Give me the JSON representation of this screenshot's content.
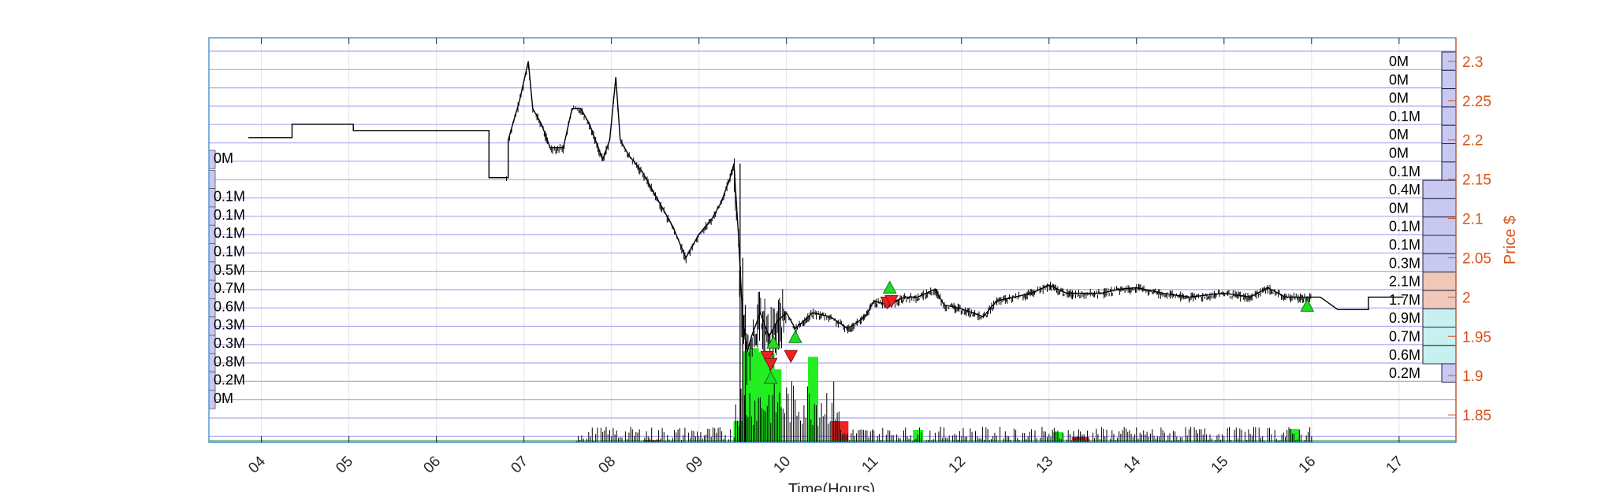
{
  "chart_data": {
    "type": "line",
    "xlabel": "Time(Hours)",
    "ylabel": "Price $",
    "xlim": [
      3.4,
      17.65
    ],
    "ylim": [
      1.815,
      2.33
    ],
    "x_ticks": [
      {
        "value": 4,
        "label": "04"
      },
      {
        "value": 5,
        "label": "05"
      },
      {
        "value": 6,
        "label": "06"
      },
      {
        "value": 7,
        "label": "07"
      },
      {
        "value": 8,
        "label": "08"
      },
      {
        "value": 9,
        "label": "09"
      },
      {
        "value": 10,
        "label": "10"
      },
      {
        "value": 11,
        "label": "11"
      },
      {
        "value": 12,
        "label": "12"
      },
      {
        "value": 13,
        "label": "13"
      },
      {
        "value": 14,
        "label": "14"
      },
      {
        "value": 15,
        "label": "15"
      },
      {
        "value": 16,
        "label": "16"
      },
      {
        "value": 17,
        "label": "17"
      }
    ],
    "y_ticks": [
      {
        "value": 2.3,
        "label": "2.3"
      },
      {
        "value": 2.25,
        "label": "2.25"
      },
      {
        "value": 2.2,
        "label": "2.2"
      },
      {
        "value": 2.15,
        "label": "2.15"
      },
      {
        "value": 2.1,
        "label": "2.1"
      },
      {
        "value": 2.05,
        "label": "2.05"
      },
      {
        "value": 2.0,
        "label": "2"
      },
      {
        "value": 1.95,
        "label": "1.95"
      },
      {
        "value": 1.9,
        "label": "1.9"
      },
      {
        "value": 1.85,
        "label": "1.85"
      }
    ],
    "price_series": {
      "name": "Price",
      "color": "#000000",
      "points": [
        [
          3.85,
          2.203
        ],
        [
          4.35,
          2.203
        ],
        [
          4.35,
          2.22
        ],
        [
          5.05,
          2.22
        ],
        [
          5.05,
          2.212
        ],
        [
          6.6,
          2.212
        ],
        [
          6.6,
          2.152
        ],
        [
          6.82,
          2.152
        ],
        [
          6.82,
          2.2
        ],
        [
          6.95,
          2.25
        ],
        [
          7.05,
          2.3
        ],
        [
          7.1,
          2.24
        ],
        [
          7.2,
          2.22
        ],
        [
          7.3,
          2.19
        ],
        [
          7.45,
          2.19
        ],
        [
          7.55,
          2.24
        ],
        [
          7.65,
          2.24
        ],
        [
          7.75,
          2.22
        ],
        [
          7.9,
          2.175
        ],
        [
          7.98,
          2.2
        ],
        [
          8.05,
          2.28
        ],
        [
          8.1,
          2.2
        ],
        [
          8.2,
          2.18
        ],
        [
          8.35,
          2.16
        ],
        [
          8.55,
          2.12
        ],
        [
          8.7,
          2.09
        ],
        [
          8.85,
          2.05
        ],
        [
          9.0,
          2.08
        ],
        [
          9.15,
          2.1
        ],
        [
          9.25,
          2.12
        ],
        [
          9.35,
          2.15
        ],
        [
          9.4,
          2.17
        ],
        [
          9.45,
          2.08
        ],
        [
          9.5,
          1.97
        ],
        [
          9.55,
          1.93
        ],
        [
          9.6,
          1.95
        ],
        [
          9.7,
          1.98
        ],
        [
          9.8,
          1.95
        ],
        [
          9.9,
          1.97
        ],
        [
          10.0,
          1.98
        ],
        [
          10.1,
          1.96
        ],
        [
          10.3,
          1.98
        ],
        [
          10.5,
          1.975
        ],
        [
          10.7,
          1.96
        ],
        [
          10.9,
          1.975
        ],
        [
          11.0,
          1.995
        ],
        [
          11.15,
          1.99
        ],
        [
          11.35,
          2.0
        ],
        [
          11.5,
          2.0
        ],
        [
          11.7,
          2.01
        ],
        [
          11.8,
          1.99
        ],
        [
          12.0,
          1.985
        ],
        [
          12.25,
          1.975
        ],
        [
          12.4,
          1.995
        ],
        [
          12.6,
          2.0
        ],
        [
          12.8,
          2.005
        ],
        [
          13.0,
          2.015
        ],
        [
          13.2,
          2.005
        ],
        [
          13.6,
          2.005
        ],
        [
          13.8,
          2.01
        ],
        [
          14.0,
          2.012
        ],
        [
          14.3,
          2.005
        ],
        [
          14.6,
          2.0
        ],
        [
          15.0,
          2.005
        ],
        [
          15.3,
          2.0
        ],
        [
          15.5,
          2.012
        ],
        [
          15.7,
          2.0
        ],
        [
          16.1,
          2.0
        ],
        [
          16.3,
          1.984
        ],
        [
          16.65,
          1.984
        ],
        [
          16.65,
          2.0
        ],
        [
          17.05,
          2.0
        ]
      ]
    },
    "buy_markers": [
      {
        "x": 9.85,
        "y": 1.942
      },
      {
        "x": 9.82,
        "y": 1.897
      },
      {
        "x": 10.1,
        "y": 1.949
      },
      {
        "x": 11.18,
        "y": 2.012
      },
      {
        "x": 15.95,
        "y": 1.989
      }
    ],
    "sell_markers": [
      {
        "x": 9.78,
        "y": 1.924
      },
      {
        "x": 9.82,
        "y": 1.915
      },
      {
        "x": 10.05,
        "y": 1.925
      },
      {
        "x": 11.15,
        "y": 1.993
      },
      {
        "x": 11.2,
        "y": 1.995
      }
    ],
    "volume_bars": {
      "buy_color": "#22ee22",
      "sell_color": "#ee2222",
      "buy": [
        {
          "x": 9.45,
          "top": 1.842
        },
        {
          "x": 9.55,
          "top": 1.931
        },
        {
          "x": 9.62,
          "top": 1.935
        },
        {
          "x": 9.72,
          "top": 1.93
        },
        {
          "x": 9.8,
          "top": 1.928
        },
        {
          "x": 9.88,
          "top": 1.908
        },
        {
          "x": 10.3,
          "top": 1.924
        },
        {
          "x": 11.5,
          "top": 1.831
        },
        {
          "x": 13.1,
          "top": 1.828
        },
        {
          "x": 15.8,
          "top": 1.832
        }
      ],
      "sell": [
        {
          "x": 10.6,
          "top": 1.842
        },
        {
          "x": 8.45,
          "top": 1.818
        },
        {
          "x": 13.35,
          "top": 1.822
        }
      ]
    },
    "right_profile": [
      {
        "label": "0M",
        "color": "#c8c8f0"
      },
      {
        "label": "0M",
        "color": "#c8c8f0"
      },
      {
        "label": "0M",
        "color": "#c8c8f0"
      },
      {
        "label": "0.1M",
        "color": "#c8c8f0"
      },
      {
        "label": "0M",
        "color": "#c8c8f0"
      },
      {
        "label": "0M",
        "color": "#c8c8f0"
      },
      {
        "label": "0.1M",
        "color": "#c8c8f0"
      },
      {
        "label": "0.4M",
        "color": "#c8c8f0"
      },
      {
        "label": "0M",
        "color": "#c8c8f0"
      },
      {
        "label": "0.1M",
        "color": "#c8c8f0"
      },
      {
        "label": "0.1M",
        "color": "#c8c8f0"
      },
      {
        "label": "0.3M",
        "color": "#c8c8f0"
      },
      {
        "label": "2.1M",
        "color": "#f0c8b8"
      },
      {
        "label": "1.7M",
        "color": "#f0c8b8"
      },
      {
        "label": "0.9M",
        "color": "#c8f0f0"
      },
      {
        "label": "0.7M",
        "color": "#c8f0f0"
      },
      {
        "label": "0.6M",
        "color": "#c8f0f0"
      },
      {
        "label": "0.2M",
        "color": "#c8c8f0"
      }
    ],
    "left_profile": [
      {
        "label": "0M"
      },
      {
        "label": ""
      },
      {
        "label": "0.1M"
      },
      {
        "label": "0.1M"
      },
      {
        "label": "0.1M"
      },
      {
        "label": "0.1M"
      },
      {
        "label": "0.5M"
      },
      {
        "label": "0.7M"
      },
      {
        "label": "0.6M"
      },
      {
        "label": "0.3M"
      },
      {
        "label": "0.3M"
      },
      {
        "label": "0.8M"
      },
      {
        "label": "0.2M"
      },
      {
        "label": "0M"
      }
    ],
    "grid": true
  }
}
